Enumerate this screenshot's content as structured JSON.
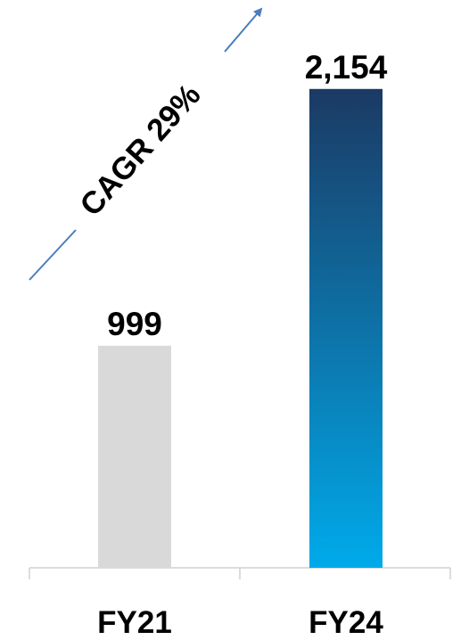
{
  "chart_data": {
    "type": "bar",
    "categories": [
      "FY21",
      "FY24"
    ],
    "values": [
      999,
      2154
    ],
    "value_labels": [
      "999",
      "2,154"
    ],
    "annotation": "CAGR 29%",
    "colors": {
      "fy21_bar": "#d9d9d9",
      "fy24_gradient_top": "#1b3a64",
      "fy24_gradient_bottom": "#00aaea",
      "arrow": "#4a7ebb",
      "axis": "#d0d0d0"
    },
    "grid": false,
    "legend": "none"
  }
}
